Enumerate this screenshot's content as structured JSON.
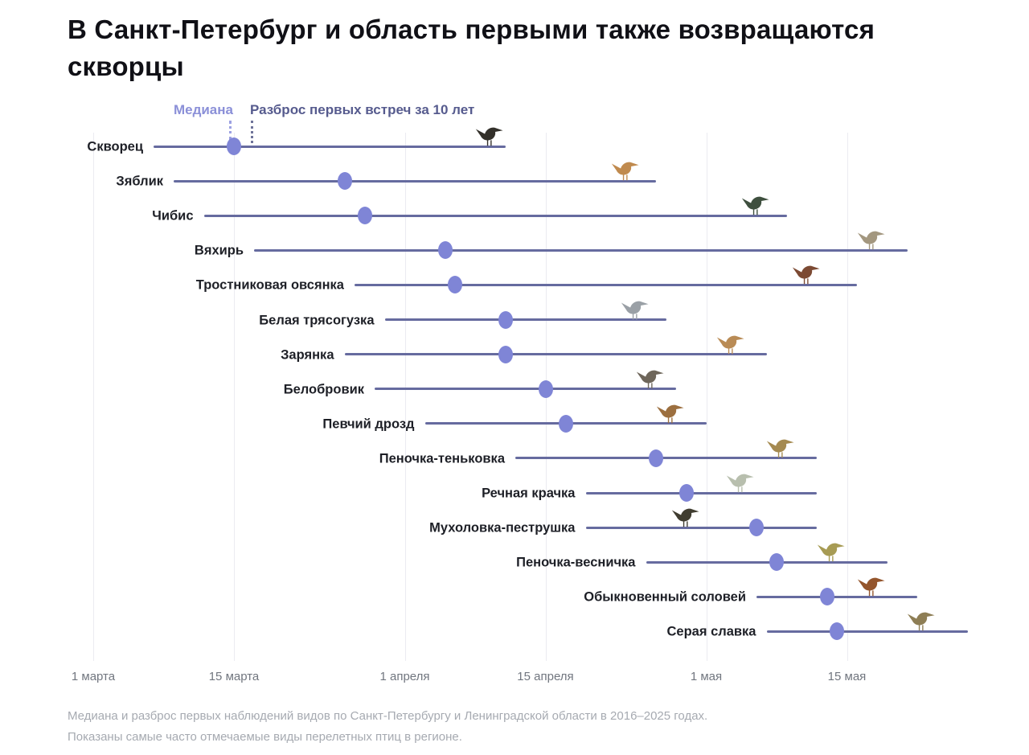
{
  "title": "В Санкт-Петербург и область первыми также возвращаются скворцы",
  "legend": {
    "median_label": "Медиана",
    "range_label": "Разброс первых встреч за 10 лет"
  },
  "footer": {
    "line1": "Медиана и разброс первых наблюдений видов по Санкт-Петербургу и Ленинградской области в 2016–2025 годах.",
    "line2": "Показаны самые часто отмечаемые виды перелетных птиц в регионе."
  },
  "colors": {
    "range_line": "#666b9f",
    "median_dot": "#7f85d6",
    "median_legend_text": "#8b90d8",
    "range_legend_text": "#565b8e",
    "gridline": "#ebebf1",
    "axis_text": "#71767f",
    "row_label_text": "#1d1f26",
    "footer_text": "#a6aab1"
  },
  "chart_data": {
    "type": "range-dot-timeline",
    "title": "В Санкт-Петербург и область первыми также возвращаются скворцы",
    "x_unit": "days since 1 March",
    "x_axis_ticks": [
      {
        "label": "1 марта",
        "day": 0
      },
      {
        "label": "15 марта",
        "day": 14
      },
      {
        "label": "1 апреля",
        "day": 31
      },
      {
        "label": "15 апреля",
        "day": 45
      },
      {
        "label": "1 мая",
        "day": 61
      },
      {
        "label": "15 мая",
        "day": 75
      }
    ],
    "legend": [
      "Медиана",
      "Разброс первых встреч за 10 лет"
    ],
    "series": [
      {
        "name": "Скворец",
        "start_day": 6,
        "median_day": 14,
        "end_day": 41,
        "start_date": "7 марта",
        "median_date": "15 марта",
        "end_date": "11 апреля",
        "bird_day": 39.5,
        "bird_color": "#33302a"
      },
      {
        "name": "Зяблик",
        "start_day": 8,
        "median_day": 25,
        "end_day": 56,
        "start_date": "9 марта",
        "median_date": "26 марта",
        "end_date": "26 апреля",
        "bird_day": 53,
        "bird_color": "#c08a4e"
      },
      {
        "name": "Чибис",
        "start_day": 11,
        "median_day": 27,
        "end_day": 69,
        "start_date": "12 марта",
        "median_date": "28 марта",
        "end_date": "9 мая",
        "bird_day": 66,
        "bird_color": "#3e4f3e"
      },
      {
        "name": "Вяхирь",
        "start_day": 16,
        "median_day": 35,
        "end_day": 81,
        "start_date": "17 марта",
        "median_date": "5 апреля",
        "end_date": "21 мая",
        "bird_day": 77.5,
        "bird_color": "#a3977f"
      },
      {
        "name": "Тростниковая овсянка",
        "start_day": 26,
        "median_day": 36,
        "end_day": 76,
        "start_date": "27 марта",
        "median_date": "6 апреля",
        "end_date": "16 мая",
        "bird_day": 71,
        "bird_color": "#7c4a33"
      },
      {
        "name": "Белая трясогузка",
        "start_day": 29,
        "median_day": 41,
        "end_day": 57,
        "start_date": "30 марта",
        "median_date": "11 апреля",
        "end_date": "27 апреля",
        "bird_day": 54,
        "bird_color": "#9aa0a6"
      },
      {
        "name": "Зарянка",
        "start_day": 25,
        "median_day": 41,
        "end_day": 67,
        "start_date": "26 марта",
        "median_date": "11 апреля",
        "end_date": "7 мая",
        "bird_day": 63.5,
        "bird_color": "#b98b55"
      },
      {
        "name": "Белобровик",
        "start_day": 28,
        "median_day": 45,
        "end_day": 58,
        "start_date": "29 марта",
        "median_date": "15 апреля",
        "end_date": "28 апреля",
        "bird_day": 55.5,
        "bird_color": "#6e665a"
      },
      {
        "name": "Певчий дрозд",
        "start_day": 33,
        "median_day": 47,
        "end_day": 61,
        "start_date": "3 апреля",
        "median_date": "17 апреля",
        "end_date": "1 мая",
        "bird_day": 57.5,
        "bird_color": "#9c6f3f"
      },
      {
        "name": "Пеночка-теньковка",
        "start_day": 42,
        "median_day": 56,
        "end_day": 72,
        "start_date": "12 апреля",
        "median_date": "26 апреля",
        "end_date": "12 мая",
        "bird_day": 68.5,
        "bird_color": "#a58a50"
      },
      {
        "name": "Речная крачка",
        "start_day": 49,
        "median_day": 59,
        "end_day": 72,
        "start_date": "19 апреля",
        "median_date": "29 апреля",
        "end_date": "12 мая",
        "bird_day": 64.5,
        "bird_color": "#b8bfae"
      },
      {
        "name": "Мухоловка-пеструшка",
        "start_day": 49,
        "median_day": 66,
        "end_day": 72,
        "start_date": "19 апреля",
        "median_date": "6 мая",
        "end_date": "12 мая",
        "bird_day": 59,
        "bird_color": "#403d30"
      },
      {
        "name": "Пеночка-весничка",
        "start_day": 55,
        "median_day": 68,
        "end_day": 79,
        "start_date": "25 апреля",
        "median_date": "8 мая",
        "end_date": "19 мая",
        "bird_day": 73.5,
        "bird_color": "#a79b54"
      },
      {
        "name": "Обыкновенный соловей",
        "start_day": 66,
        "median_day": 73,
        "end_day": 82,
        "start_date": "6 мая",
        "median_date": "13 мая",
        "end_date": "22 мая",
        "bird_day": 77.5,
        "bird_color": "#94552c"
      },
      {
        "name": "Серая славка",
        "start_day": 67,
        "median_day": 74,
        "end_day": 87,
        "start_date": "7 мая",
        "median_date": "14 мая",
        "end_date": "27 мая",
        "bird_day": 82.5,
        "bird_color": "#8e7e55"
      }
    ]
  }
}
